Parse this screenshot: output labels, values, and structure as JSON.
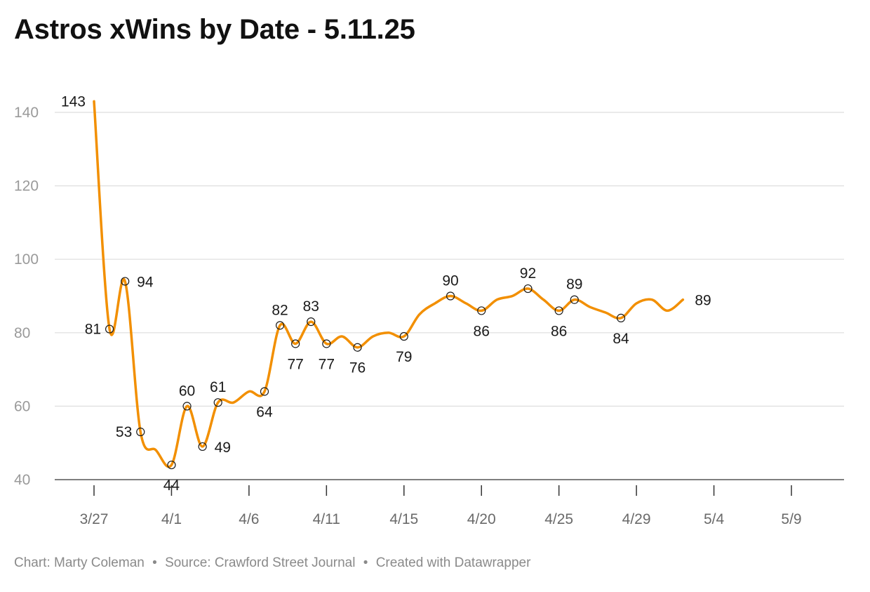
{
  "title": "Astros xWins by Date - 5.11.25",
  "footer": {
    "chart_credit": "Chart: Marty Coleman",
    "source": "Source: Crawford Street Journal",
    "created_with": "Created with Datawrapper",
    "separator": "•"
  },
  "colors": {
    "line": "#f28f00",
    "grid": "#dedede",
    "axis_labels": "#9a9a9a"
  },
  "chart_data": {
    "type": "line",
    "title": "Astros xWins by Date - 5.11.25",
    "xlabel": "",
    "ylabel": "",
    "ylim": [
      40,
      140
    ],
    "xlim": [
      "2025-03-27",
      "2025-05-11"
    ],
    "grid": true,
    "y_ticks": [
      40,
      60,
      80,
      100,
      120,
      140
    ],
    "x_ticks": [
      {
        "date": "2025-03-27",
        "label": "3/27"
      },
      {
        "date": "2025-04-01",
        "label": "4/1"
      },
      {
        "date": "2025-04-06",
        "label": "4/6"
      },
      {
        "date": "2025-04-11",
        "label": "4/11"
      },
      {
        "date": "2025-04-16",
        "label": "4/15"
      },
      {
        "date": "2025-04-21",
        "label": "4/20"
      },
      {
        "date": "2025-04-26",
        "label": "4/25"
      },
      {
        "date": "2025-05-01",
        "label": "4/29"
      },
      {
        "date": "2025-05-06",
        "label": "5/4"
      },
      {
        "date": "2025-05-11",
        "label": "5/9"
      }
    ],
    "series": [
      {
        "values": [
          {
            "date": "2025-03-27",
            "y": 143,
            "label": "143",
            "marker": false,
            "label_pos": "left"
          },
          {
            "date": "2025-03-28",
            "y": 81,
            "label": "81",
            "marker": true,
            "label_pos": "left"
          },
          {
            "date": "2025-03-29",
            "y": 94,
            "label": "94",
            "marker": true,
            "label_pos": "right"
          },
          {
            "date": "2025-03-30",
            "y": 53,
            "label": "53",
            "marker": true,
            "label_pos": "left"
          },
          {
            "date": "2025-03-31",
            "y": 48,
            "marker": false
          },
          {
            "date": "2025-04-01",
            "y": 44,
            "label": "44",
            "marker": true,
            "label_pos": "below"
          },
          {
            "date": "2025-04-02",
            "y": 60,
            "label": "60",
            "marker": true,
            "label_pos": "above"
          },
          {
            "date": "2025-04-03",
            "y": 49,
            "label": "49",
            "marker": true,
            "label_pos": "right"
          },
          {
            "date": "2025-04-04",
            "y": 61,
            "label": "61",
            "marker": true,
            "label_pos": "above"
          },
          {
            "date": "2025-04-05",
            "y": 61,
            "marker": false
          },
          {
            "date": "2025-04-06",
            "y": 64,
            "marker": false
          },
          {
            "date": "2025-04-07",
            "y": 64,
            "label": "64",
            "marker": true,
            "label_pos": "below"
          },
          {
            "date": "2025-04-08",
            "y": 82,
            "label": "82",
            "marker": true,
            "label_pos": "above"
          },
          {
            "date": "2025-04-09",
            "y": 77,
            "label": "77",
            "marker": true,
            "label_pos": "below"
          },
          {
            "date": "2025-04-10",
            "y": 83,
            "label": "83",
            "marker": true,
            "label_pos": "above"
          },
          {
            "date": "2025-04-11",
            "y": 77,
            "label": "77",
            "marker": true,
            "label_pos": "below"
          },
          {
            "date": "2025-04-12",
            "y": 79,
            "marker": false
          },
          {
            "date": "2025-04-13",
            "y": 76,
            "label": "76",
            "marker": true,
            "label_pos": "below"
          },
          {
            "date": "2025-04-14",
            "y": 79,
            "marker": false
          },
          {
            "date": "2025-04-15",
            "y": 80,
            "marker": false
          },
          {
            "date": "2025-04-16",
            "y": 79,
            "label": "79",
            "marker": true,
            "label_pos": "below"
          },
          {
            "date": "2025-04-17",
            "y": 85,
            "marker": false
          },
          {
            "date": "2025-04-18",
            "y": 88,
            "marker": false
          },
          {
            "date": "2025-04-19",
            "y": 90,
            "label": "90",
            "marker": true,
            "label_pos": "above"
          },
          {
            "date": "2025-04-20",
            "y": 88,
            "marker": false
          },
          {
            "date": "2025-04-21",
            "y": 86,
            "label": "86",
            "marker": true,
            "label_pos": "below"
          },
          {
            "date": "2025-04-22",
            "y": 89,
            "marker": false
          },
          {
            "date": "2025-04-23",
            "y": 90,
            "marker": false
          },
          {
            "date": "2025-04-24",
            "y": 92,
            "label": "92",
            "marker": true,
            "label_pos": "above"
          },
          {
            "date": "2025-04-25",
            "y": 89,
            "marker": false
          },
          {
            "date": "2025-04-26",
            "y": 86,
            "label": "86",
            "marker": true,
            "label_pos": "below"
          },
          {
            "date": "2025-04-27",
            "y": 89,
            "label": "89",
            "marker": true,
            "label_pos": "above"
          },
          {
            "date": "2025-04-28",
            "y": 87,
            "marker": false
          },
          {
            "date": "2025-04-29",
            "y": 85.5,
            "marker": false
          },
          {
            "date": "2025-04-30",
            "y": 84,
            "label": "84",
            "marker": true,
            "label_pos": "below"
          },
          {
            "date": "2025-05-01",
            "y": 88,
            "marker": false
          },
          {
            "date": "2025-05-02",
            "y": 89,
            "marker": false
          },
          {
            "date": "2025-05-03",
            "y": 86,
            "marker": false
          },
          {
            "date": "2025-05-04",
            "y": 89,
            "label": "89",
            "marker": false,
            "label_pos": "right"
          }
        ]
      }
    ]
  }
}
